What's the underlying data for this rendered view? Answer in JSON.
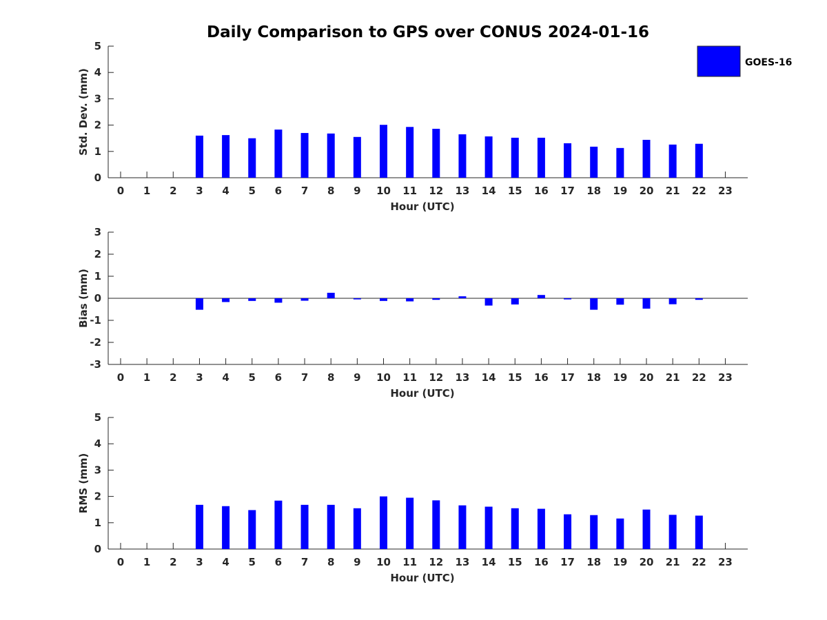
{
  "title": "Daily Comparison to GPS over CONUS 2024-01-16",
  "colors": {
    "bar": "#0000ff",
    "axis": "#262626",
    "text": "#262626"
  },
  "legend": {
    "label": "GOES-16",
    "placement": "top-right"
  },
  "chart_data": [
    {
      "type": "bar",
      "xlabel": "Hour (UTC)",
      "ylabel": "Std. Dev. (mm)",
      "ylim": [
        0,
        5
      ],
      "yticks": [
        0,
        1,
        2,
        3,
        4,
        5
      ],
      "categories": [
        "0",
        "1",
        "2",
        "3",
        "4",
        "5",
        "6",
        "7",
        "8",
        "9",
        "10",
        "11",
        "12",
        "13",
        "14",
        "15",
        "16",
        "17",
        "18",
        "19",
        "20",
        "21",
        "22",
        "23"
      ],
      "series": [
        {
          "name": "GOES-16",
          "values": [
            null,
            null,
            null,
            1.6,
            1.62,
            1.5,
            1.83,
            1.7,
            1.68,
            1.55,
            2.01,
            1.93,
            1.86,
            1.65,
            1.57,
            1.52,
            1.52,
            1.31,
            1.18,
            1.13,
            1.44,
            1.26,
            1.29,
            null
          ]
        }
      ]
    },
    {
      "type": "bar",
      "xlabel": "Hour (UTC)",
      "ylabel": "Bias (mm)",
      "ylim": [
        -3,
        3
      ],
      "yticks": [
        -3,
        -2,
        -1,
        0,
        1,
        2,
        3
      ],
      "categories": [
        "0",
        "1",
        "2",
        "3",
        "4",
        "5",
        "6",
        "7",
        "8",
        "9",
        "10",
        "11",
        "12",
        "13",
        "14",
        "15",
        "16",
        "17",
        "18",
        "19",
        "20",
        "21",
        "22",
        "23"
      ],
      "series": [
        {
          "name": "GOES-16",
          "values": [
            null,
            null,
            null,
            -0.52,
            -0.17,
            -0.12,
            -0.2,
            -0.11,
            0.25,
            -0.05,
            -0.12,
            -0.14,
            -0.07,
            0.09,
            -0.33,
            -0.28,
            0.15,
            -0.05,
            -0.52,
            -0.29,
            -0.47,
            -0.27,
            -0.07,
            null
          ]
        }
      ]
    },
    {
      "type": "bar",
      "xlabel": "Hour (UTC)",
      "ylabel": "RMS (mm)",
      "ylim": [
        0,
        5
      ],
      "yticks": [
        0,
        1,
        2,
        3,
        4,
        5
      ],
      "categories": [
        "0",
        "1",
        "2",
        "3",
        "4",
        "5",
        "6",
        "7",
        "8",
        "9",
        "10",
        "11",
        "12",
        "13",
        "14",
        "15",
        "16",
        "17",
        "18",
        "19",
        "20",
        "21",
        "22",
        "23"
      ],
      "series": [
        {
          "name": "GOES-16",
          "values": [
            null,
            null,
            null,
            1.68,
            1.63,
            1.48,
            1.84,
            1.68,
            1.68,
            1.55,
            2.0,
            1.95,
            1.85,
            1.66,
            1.61,
            1.55,
            1.53,
            1.32,
            1.29,
            1.16,
            1.5,
            1.3,
            1.27,
            null
          ]
        }
      ]
    }
  ]
}
